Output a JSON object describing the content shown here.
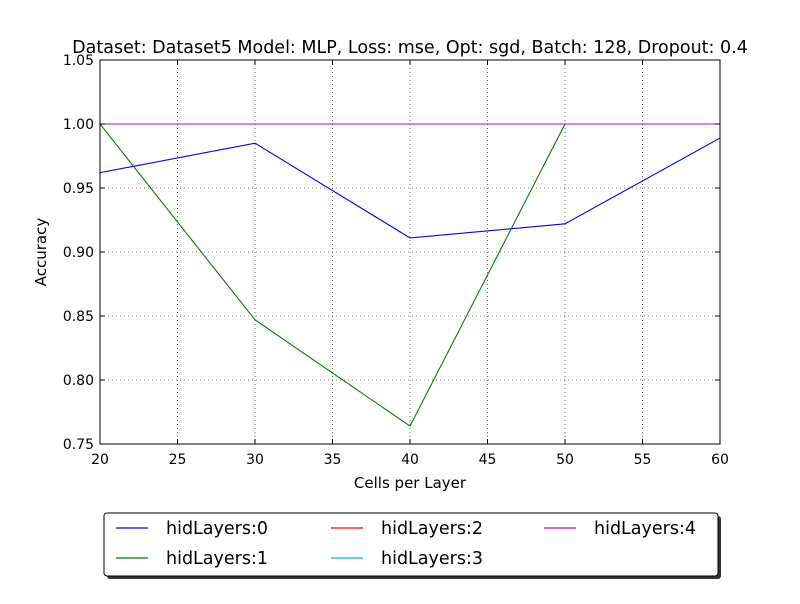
{
  "chart_data": {
    "type": "line",
    "title": "Dataset: Dataset5 Model: MLP, Loss: mse, Opt: sgd, Batch: 128, Dropout: 0.4",
    "xlabel": "Cells per Layer",
    "ylabel": "Accuracy",
    "xlim": [
      20,
      60
    ],
    "ylim": [
      0.75,
      1.05
    ],
    "xticks": [
      20,
      25,
      30,
      35,
      40,
      45,
      50,
      55,
      60
    ],
    "yticks": [
      0.75,
      0.8,
      0.85,
      0.9,
      0.95,
      1.0,
      1.05
    ],
    "xtick_labels": [
      "20",
      "25",
      "30",
      "35",
      "40",
      "45",
      "50",
      "55",
      "60"
    ],
    "ytick_labels": [
      "0.75",
      "0.80",
      "0.85",
      "0.90",
      "0.95",
      "1.00",
      "1.05"
    ],
    "grid": true,
    "legend_position": "bottom-outside",
    "x": [
      20,
      30,
      40,
      50,
      60
    ],
    "series": [
      {
        "name": "hidLayers:0",
        "color": "#0000ff",
        "values": [
          0.962,
          0.985,
          0.911,
          0.922,
          0.989
        ]
      },
      {
        "name": "hidLayers:1",
        "color": "#008000",
        "values": [
          1.0,
          0.847,
          0.764,
          1.0,
          1.0
        ]
      },
      {
        "name": "hidLayers:2",
        "color": "#ff0000",
        "values": [
          1.0,
          1.0,
          1.0,
          1.0,
          1.0
        ]
      },
      {
        "name": "hidLayers:3",
        "color": "#00bfbf",
        "values": [
          1.0,
          1.0,
          1.0,
          1.0,
          1.0
        ]
      },
      {
        "name": "hidLayers:4",
        "color": "#bf00bf",
        "values": [
          1.0,
          1.0,
          1.0,
          1.0,
          1.0
        ]
      }
    ]
  }
}
